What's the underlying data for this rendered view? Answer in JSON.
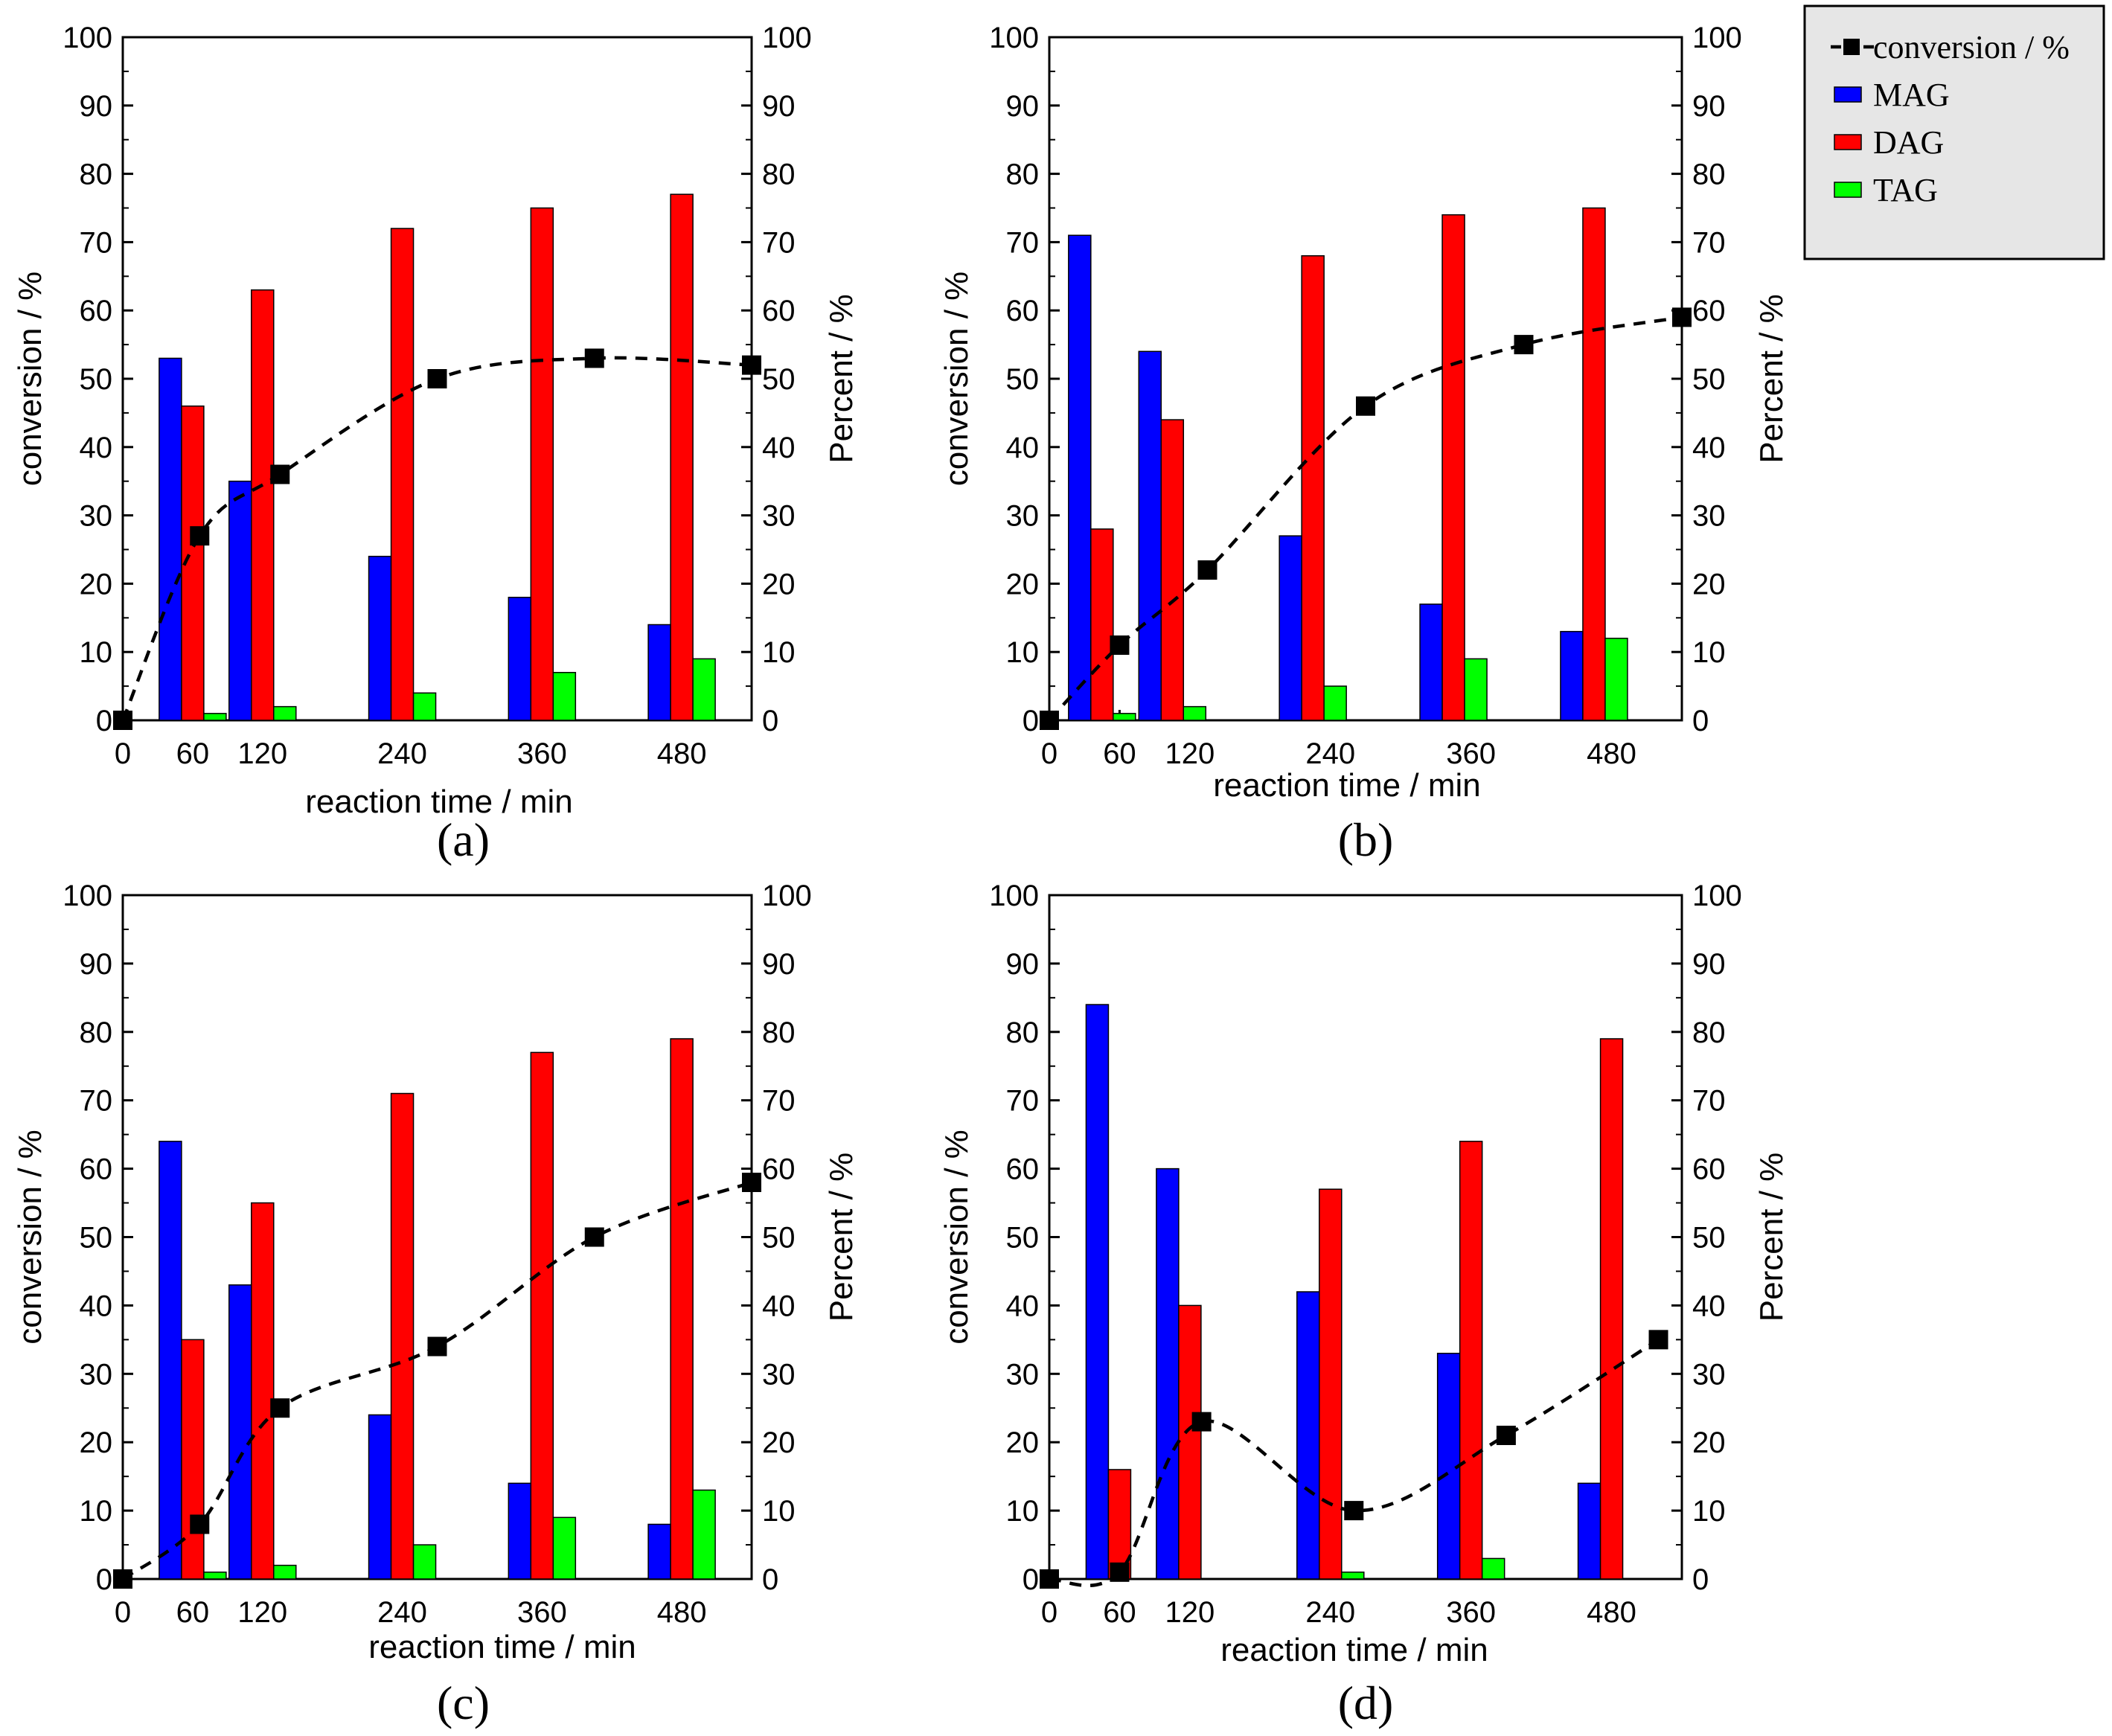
{
  "figure": {
    "legend": {
      "entries": [
        {
          "label": "conversion / %",
          "kind": "line-marker",
          "color": "#000000"
        },
        {
          "label": "MAG",
          "kind": "bar",
          "color": "#0000ff"
        },
        {
          "label": "DAG",
          "kind": "bar",
          "color": "#ff0000"
        },
        {
          "label": "TAG",
          "kind": "bar",
          "color": "#00ff00"
        }
      ],
      "background": "#e6e6e6"
    }
  },
  "chart_data": [
    {
      "type": "bar+line",
      "panel_label": "(a)",
      "xlabel": "reaction time / min",
      "ylabel_left": "conversion / %",
      "ylabel_right": "Percent / %",
      "ylim": [
        0,
        100
      ],
      "yticks": [
        "0",
        "10",
        "20",
        "30",
        "40",
        "50",
        "60",
        "70",
        "80",
        "90",
        "100"
      ],
      "xlim": [
        0,
        540
      ],
      "xticks": [
        {
          "value": 0,
          "label": "0"
        },
        {
          "value": 60,
          "label": "60"
        },
        {
          "value": 120,
          "label": "120"
        },
        {
          "value": 240,
          "label": "240"
        },
        {
          "value": 360,
          "label": "360"
        },
        {
          "value": 480,
          "label": "480"
        }
      ],
      "groups": [
        {
          "center": 60,
          "MAG": 53,
          "DAG": 46,
          "TAG": 1
        },
        {
          "center": 120,
          "MAG": 35,
          "DAG": 63,
          "TAG": 2
        },
        {
          "center": 240,
          "MAG": 24,
          "DAG": 72,
          "TAG": 4
        },
        {
          "center": 360,
          "MAG": 18,
          "DAG": 75,
          "TAG": 7
        },
        {
          "center": 480,
          "MAG": 14,
          "DAG": 77,
          "TAG": 9
        }
      ],
      "conversion": [
        {
          "x": 0,
          "y": 0
        },
        {
          "x": 66,
          "y": 27
        },
        {
          "x": 135,
          "y": 36
        },
        {
          "x": 270,
          "y": 50
        },
        {
          "x": 405,
          "y": 53
        },
        {
          "x": 540,
          "y": 52
        }
      ]
    },
    {
      "type": "bar+line",
      "panel_label": "(b)",
      "xlabel": "reaction time / min",
      "ylabel_left": "conversion / %",
      "ylabel_right": "Percent / %",
      "ylim": [
        0,
        100
      ],
      "yticks": [
        "0",
        "10",
        "20",
        "30",
        "40",
        "50",
        "60",
        "70",
        "80",
        "90",
        "100"
      ],
      "xlim": [
        0,
        540
      ],
      "xticks": [
        {
          "value": 0,
          "label": "0"
        },
        {
          "value": 60,
          "label": "60"
        },
        {
          "value": 120,
          "label": "120"
        },
        {
          "value": 240,
          "label": "240"
        },
        {
          "value": 360,
          "label": "360"
        },
        {
          "value": 480,
          "label": "480"
        }
      ],
      "groups": [
        {
          "center": 45,
          "MAG": 71,
          "DAG": 28,
          "TAG": 1
        },
        {
          "center": 105,
          "MAG": 54,
          "DAG": 44,
          "TAG": 2
        },
        {
          "center": 225,
          "MAG": 27,
          "DAG": 68,
          "TAG": 5
        },
        {
          "center": 345,
          "MAG": 17,
          "DAG": 74,
          "TAG": 9
        },
        {
          "center": 465,
          "MAG": 13,
          "DAG": 75,
          "TAG": 12
        }
      ],
      "conversion": [
        {
          "x": 0,
          "y": 0
        },
        {
          "x": 60,
          "y": 11
        },
        {
          "x": 135,
          "y": 22
        },
        {
          "x": 270,
          "y": 46
        },
        {
          "x": 405,
          "y": 55
        },
        {
          "x": 540,
          "y": 59
        }
      ]
    },
    {
      "type": "bar+line",
      "panel_label": "(c)",
      "xlabel": "reaction time / min",
      "ylabel_left": "conversion / %",
      "ylabel_right": "Percent / %",
      "ylim": [
        0,
        100
      ],
      "yticks": [
        "0",
        "10",
        "20",
        "30",
        "40",
        "50",
        "60",
        "70",
        "80",
        "90",
        "100"
      ],
      "xlim": [
        0,
        540
      ],
      "xticks": [
        {
          "value": 0,
          "label": "0"
        },
        {
          "value": 60,
          "label": "60"
        },
        {
          "value": 120,
          "label": "120"
        },
        {
          "value": 240,
          "label": "240"
        },
        {
          "value": 360,
          "label": "360"
        },
        {
          "value": 480,
          "label": "480"
        }
      ],
      "groups": [
        {
          "center": 60,
          "MAG": 64,
          "DAG": 35,
          "TAG": 1
        },
        {
          "center": 120,
          "MAG": 43,
          "DAG": 55,
          "TAG": 2
        },
        {
          "center": 240,
          "MAG": 24,
          "DAG": 71,
          "TAG": 5
        },
        {
          "center": 360,
          "MAG": 14,
          "DAG": 77,
          "TAG": 9
        },
        {
          "center": 480,
          "MAG": 8,
          "DAG": 79,
          "TAG": 13
        }
      ],
      "conversion": [
        {
          "x": 0,
          "y": 0
        },
        {
          "x": 66,
          "y": 8
        },
        {
          "x": 135,
          "y": 25
        },
        {
          "x": 270,
          "y": 34
        },
        {
          "x": 405,
          "y": 50
        },
        {
          "x": 540,
          "y": 58
        }
      ]
    },
    {
      "type": "bar+line",
      "panel_label": "(d)",
      "xlabel": "reaction time / min",
      "ylabel_left": "conversion / %",
      "ylabel_right": "Percent / %",
      "ylim": [
        0,
        100
      ],
      "yticks": [
        "0",
        "10",
        "20",
        "30",
        "40",
        "50",
        "60",
        "70",
        "80",
        "90",
        "100"
      ],
      "xlim": [
        0,
        540
      ],
      "xticks": [
        {
          "value": 0,
          "label": "0"
        },
        {
          "value": 60,
          "label": "60"
        },
        {
          "value": 120,
          "label": "120"
        },
        {
          "value": 240,
          "label": "240"
        },
        {
          "value": 360,
          "label": "360"
        },
        {
          "value": 480,
          "label": "480"
        }
      ],
      "groups": [
        {
          "center": 60,
          "MAG": 84,
          "DAG": 16,
          "TAG": 0
        },
        {
          "center": 120,
          "MAG": 60,
          "DAG": 40,
          "TAG": 0
        },
        {
          "center": 240,
          "MAG": 42,
          "DAG": 57,
          "TAG": 1
        },
        {
          "center": 360,
          "MAG": 33,
          "DAG": 64,
          "TAG": 3
        },
        {
          "center": 480,
          "MAG": 14,
          "DAG": 79,
          "TAG": 0
        }
      ],
      "conversion": [
        {
          "x": 0,
          "y": 0
        },
        {
          "x": 60,
          "y": 1
        },
        {
          "x": 130,
          "y": 23
        },
        {
          "x": 260,
          "y": 10
        },
        {
          "x": 390,
          "y": 21
        },
        {
          "x": 520,
          "y": 35
        }
      ]
    }
  ]
}
